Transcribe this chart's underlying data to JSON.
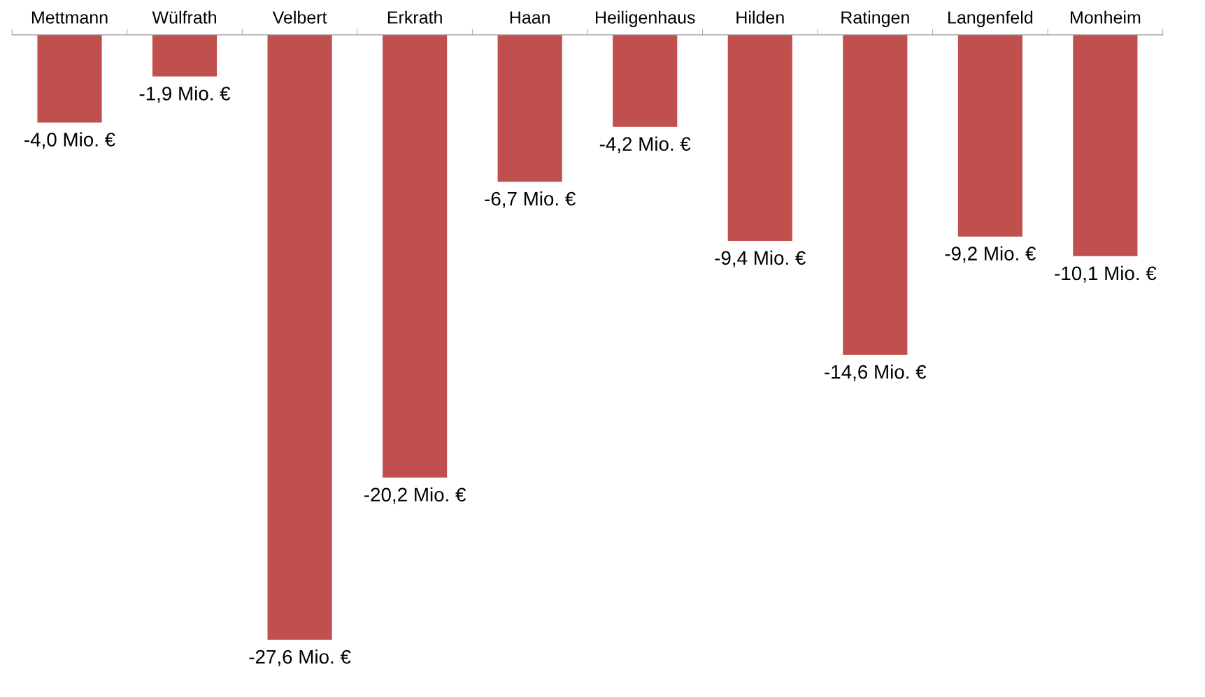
{
  "chart_data": {
    "type": "bar",
    "categories": [
      "Mettmann",
      "Wülfrath",
      "Velbert",
      "Erkrath",
      "Haan",
      "Heiligenhaus",
      "Hilden",
      "Ratingen",
      "Langenfeld",
      "Monheim"
    ],
    "values": [
      -4.0,
      -1.9,
      -27.6,
      -20.2,
      -6.7,
      -4.2,
      -9.4,
      -14.6,
      -9.2,
      -10.1
    ],
    "value_labels": [
      "-4,0 Mio. €",
      "-1,9 Mio. €",
      "-27,6 Mio. €",
      "-20,2 Mio. €",
      "-6,7 Mio. €",
      "-4,2 Mio. €",
      "-9,4 Mio. €",
      "-14,6 Mio. €",
      "-9,2 Mio. €",
      "-10,1 Mio. €"
    ],
    "color": "#c0504d",
    "grid": false,
    "legend": false
  }
}
